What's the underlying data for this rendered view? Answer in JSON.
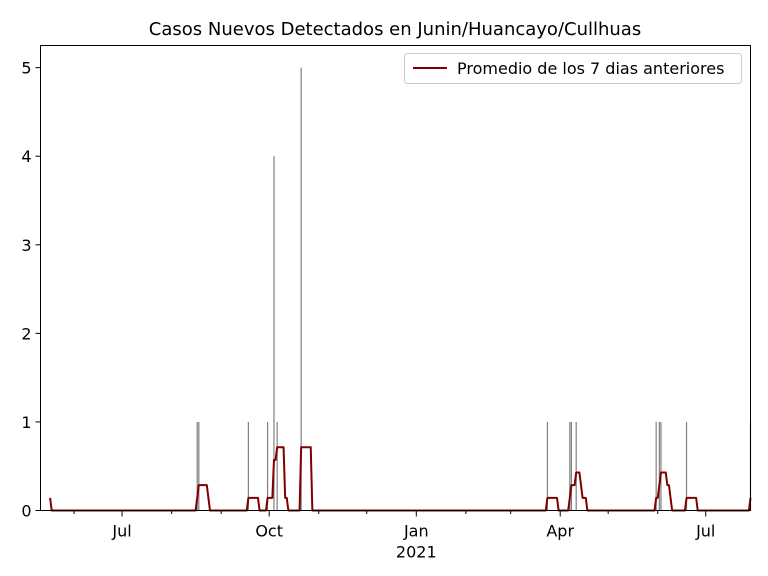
{
  "chart_data": {
    "type": "bar+line",
    "title": "Casos Nuevos Detectados en Junin/Huancayo/Cullhuas",
    "xlabel": "",
    "ylabel": "",
    "xlim": [
      "2020-05-11",
      "2021-07-29"
    ],
    "ylim": [
      0,
      5.25
    ],
    "yticks": [
      0,
      1,
      2,
      3,
      4,
      5
    ],
    "xticks": [
      {
        "date": "2020-07-01",
        "label": "Jul",
        "sublabel": ""
      },
      {
        "date": "2020-10-01",
        "label": "Oct",
        "sublabel": ""
      },
      {
        "date": "2021-01-01",
        "label": "Jan",
        "sublabel": "2021"
      },
      {
        "date": "2021-04-01",
        "label": "Apr",
        "sublabel": ""
      },
      {
        "date": "2021-07-01",
        "label": "Jul",
        "sublabel": ""
      }
    ],
    "grid": false,
    "legend": {
      "position": "top-right"
    },
    "bar_color": "#808080",
    "line_color": "#800000",
    "bars": [
      {
        "date": "2020-08-17",
        "value": 1
      },
      {
        "date": "2020-08-18",
        "value": 1
      },
      {
        "date": "2020-09-18",
        "value": 1
      },
      {
        "date": "2020-09-30",
        "value": 1
      },
      {
        "date": "2020-10-04",
        "value": 4
      },
      {
        "date": "2020-10-06",
        "value": 1
      },
      {
        "date": "2020-10-21",
        "value": 5
      },
      {
        "date": "2021-03-24",
        "value": 1
      },
      {
        "date": "2021-04-07",
        "value": 1
      },
      {
        "date": "2021-04-08",
        "value": 1
      },
      {
        "date": "2021-04-11",
        "value": 1
      },
      {
        "date": "2021-05-31",
        "value": 1
      },
      {
        "date": "2021-06-02",
        "value": 1
      },
      {
        "date": "2021-06-03",
        "value": 1
      },
      {
        "date": "2021-06-19",
        "value": 1
      },
      {
        "date": "2021-07-29",
        "value": 1
      }
    ],
    "series": [
      {
        "name": "Promedio de los 7 dias anteriores",
        "points": [
          [
            "2020-05-17",
            0.143
          ],
          [
            "2020-05-18",
            0
          ],
          [
            "2020-08-16",
            0
          ],
          [
            "2020-08-17",
            0.143
          ],
          [
            "2020-08-18",
            0.286
          ],
          [
            "2020-08-23",
            0.286
          ],
          [
            "2020-08-24",
            0.143
          ],
          [
            "2020-08-25",
            0
          ],
          [
            "2020-09-17",
            0
          ],
          [
            "2020-09-18",
            0.143
          ],
          [
            "2020-09-24",
            0.143
          ],
          [
            "2020-09-25",
            0
          ],
          [
            "2020-09-29",
            0
          ],
          [
            "2020-09-30",
            0.143
          ],
          [
            "2020-10-03",
            0.143
          ],
          [
            "2020-10-04",
            0.571
          ],
          [
            "2020-10-05",
            0.571
          ],
          [
            "2020-10-06",
            0.714
          ],
          [
            "2020-10-10",
            0.714
          ],
          [
            "2020-10-11",
            0.143
          ],
          [
            "2020-10-12",
            0.143
          ],
          [
            "2020-10-13",
            0
          ],
          [
            "2020-10-20",
            0
          ],
          [
            "2020-10-21",
            0.714
          ],
          [
            "2020-10-27",
            0.714
          ],
          [
            "2020-10-28",
            0
          ],
          [
            "2021-03-23",
            0
          ],
          [
            "2021-03-24",
            0.143
          ],
          [
            "2021-03-30",
            0.143
          ],
          [
            "2021-03-31",
            0
          ],
          [
            "2021-04-06",
            0
          ],
          [
            "2021-04-07",
            0.143
          ],
          [
            "2021-04-08",
            0.286
          ],
          [
            "2021-04-10",
            0.286
          ],
          [
            "2021-04-11",
            0.429
          ],
          [
            "2021-04-13",
            0.429
          ],
          [
            "2021-04-14",
            0.286
          ],
          [
            "2021-04-15",
            0.143
          ],
          [
            "2021-04-17",
            0.143
          ],
          [
            "2021-04-18",
            0
          ],
          [
            "2021-05-30",
            0
          ],
          [
            "2021-05-31",
            0.143
          ],
          [
            "2021-06-01",
            0.143
          ],
          [
            "2021-06-02",
            0.286
          ],
          [
            "2021-06-03",
            0.429
          ],
          [
            "2021-06-06",
            0.429
          ],
          [
            "2021-06-07",
            0.286
          ],
          [
            "2021-06-08",
            0.286
          ],
          [
            "2021-06-09",
            0.143
          ],
          [
            "2021-06-10",
            0
          ],
          [
            "2021-06-18",
            0
          ],
          [
            "2021-06-19",
            0.143
          ],
          [
            "2021-06-25",
            0.143
          ],
          [
            "2021-06-26",
            0
          ],
          [
            "2021-07-28",
            0
          ],
          [
            "2021-07-29",
            0.143
          ]
        ]
      }
    ]
  }
}
